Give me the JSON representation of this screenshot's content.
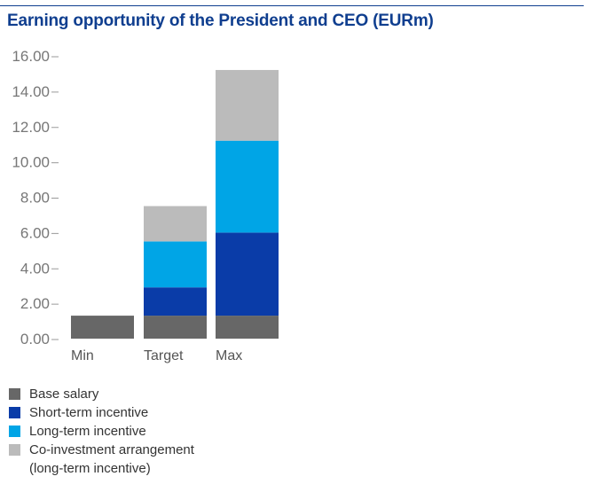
{
  "chart_data": {
    "type": "bar",
    "stacked": true,
    "title": "Earning opportunity of the President and CEO (EURm)",
    "xlabel": "",
    "ylabel": "",
    "ylim": [
      0,
      16
    ],
    "yticks": [
      "0.00",
      "2.00",
      "4.00",
      "6.00",
      "8.00",
      "10.00",
      "12.00",
      "14.00",
      "16.00"
    ],
    "categories": [
      "Min",
      "Target",
      "Max"
    ],
    "series": [
      {
        "name": "Base salary",
        "color": "#676767",
        "values": [
          1.3,
          1.3,
          1.3
        ]
      },
      {
        "name": "Short-term incentive",
        "color": "#0a3ca8",
        "values": [
          0,
          1.6,
          4.7
        ]
      },
      {
        "name": "Long-term incentive",
        "color": "#00a5e6",
        "values": [
          0,
          2.6,
          5.2
        ]
      },
      {
        "name": "Co-investment arrangement (long-term incentive)",
        "color": "#bbbbbb",
        "values": [
          0,
          2.0,
          4.0
        ]
      }
    ],
    "legend_position": "bottom-left",
    "legend_labels": [
      [
        "Base salary"
      ],
      [
        "Short-term incentive"
      ],
      [
        "Long-term incentive"
      ],
      [
        "Co-investment arrangement",
        "(long-term incentive)"
      ]
    ],
    "grid": false
  }
}
